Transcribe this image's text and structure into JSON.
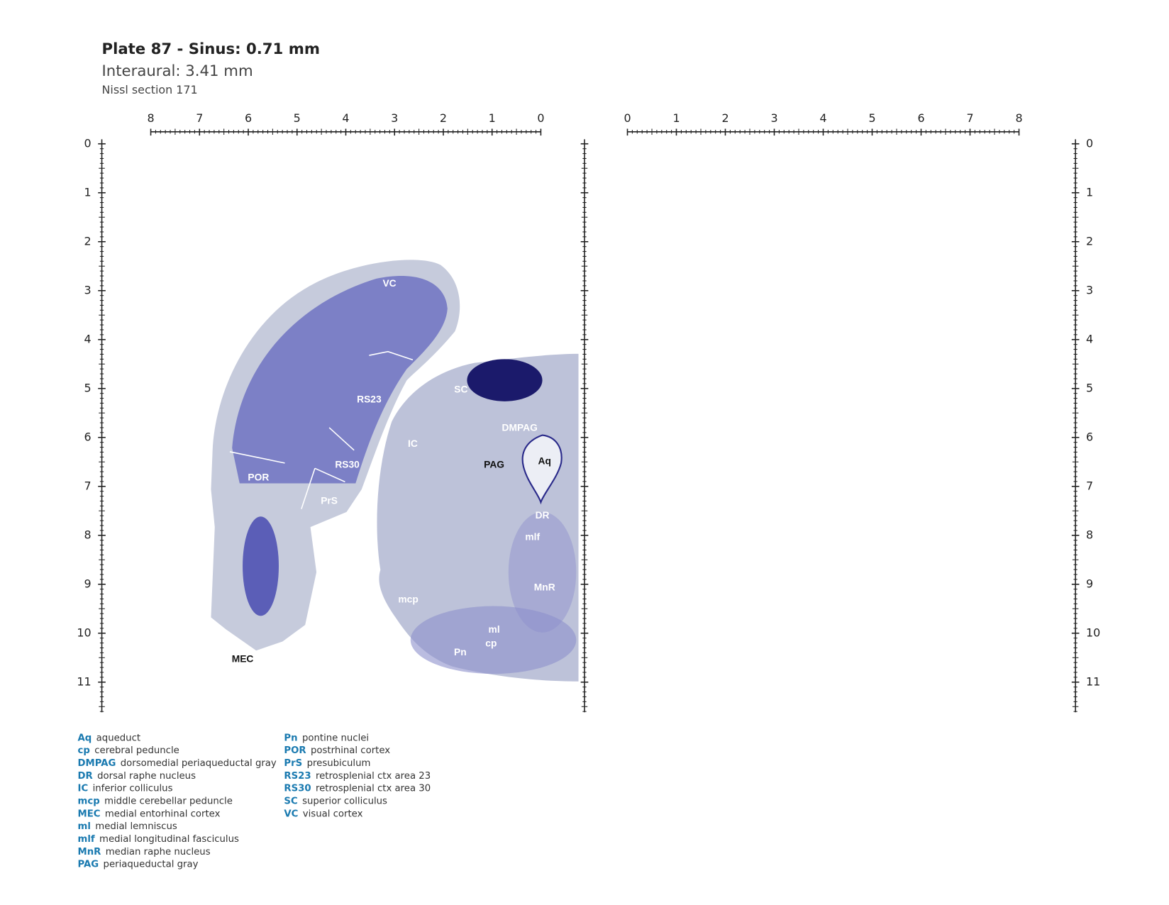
{
  "header": {
    "title": "Plate 87 - Sinus: 0.71 mm",
    "subtitle": "Interaural: 3.41 mm",
    "section": "Nissl section 171"
  },
  "rulers": {
    "top_left": [
      8,
      7,
      6,
      5,
      4,
      3,
      2,
      1,
      0
    ],
    "top_right": [
      0,
      1,
      2,
      3,
      4,
      5,
      6,
      7,
      8
    ],
    "left": [
      0,
      1,
      2,
      3,
      4,
      5,
      6,
      7,
      8,
      9,
      10,
      11
    ],
    "right": [
      0,
      1,
      2,
      3,
      4,
      5,
      6,
      7,
      8,
      9,
      10,
      11
    ]
  },
  "labels": [
    "VC",
    "RS23",
    "SC",
    "DMPAG",
    "IC",
    "Aq",
    "PAG",
    "RS30",
    "POR",
    "PrS",
    "DR",
    "mlf",
    "MnR",
    "mcp",
    "ml",
    "cp",
    "Pn",
    "MEC"
  ],
  "legend": [
    {
      "abbr": "Aq",
      "desc": "aqueduct"
    },
    {
      "abbr": "cp",
      "desc": "cerebral peduncle"
    },
    {
      "abbr": "DMPAG",
      "desc": "dorsomedial periaqueductal gray"
    },
    {
      "abbr": "DR",
      "desc": "dorsal raphe nucleus"
    },
    {
      "abbr": "IC",
      "desc": "inferior colliculus"
    },
    {
      "abbr": "mcp",
      "desc": "middle cerebellar peduncle"
    },
    {
      "abbr": "MEC",
      "desc": "medial entorhinal cortex"
    },
    {
      "abbr": "ml",
      "desc": "medial lemniscus"
    },
    {
      "abbr": "mlf",
      "desc": "medial longitudinal fasciculus"
    },
    {
      "abbr": "MnR",
      "desc": "median raphe nucleus"
    },
    {
      "abbr": "PAG",
      "desc": "periaqueductal gray"
    },
    {
      "abbr": "Pn",
      "desc": "pontine nuclei"
    },
    {
      "abbr": "POR",
      "desc": "postrhinal cortex"
    },
    {
      "abbr": "PrS",
      "desc": "presubiculum"
    },
    {
      "abbr": "RS23",
      "desc": "retrosplenial ctx area 23"
    },
    {
      "abbr": "RS30",
      "desc": "retrosplenial ctx area 30"
    },
    {
      "abbr": "SC",
      "desc": "superior colliculus"
    },
    {
      "abbr": "VC",
      "desc": "visual cortex"
    }
  ]
}
